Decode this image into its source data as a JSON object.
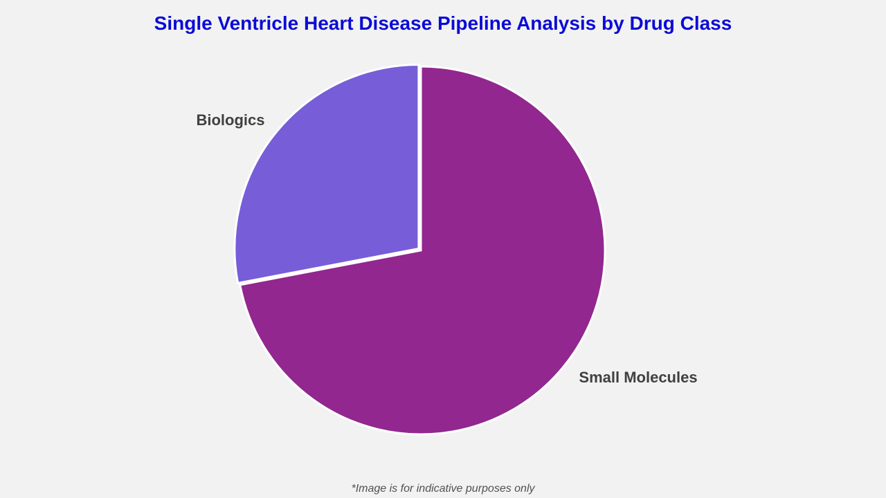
{
  "chart_data": {
    "type": "pie",
    "title": "Single Ventricle Heart Disease Pipeline Analysis by Drug Class",
    "slices": [
      {
        "label": "Small Molecules",
        "value": 72,
        "color": "#92278f"
      },
      {
        "label": "Biologics",
        "value": 28,
        "color": "#775dd8"
      }
    ],
    "start": "12 o'clock, clockwise",
    "legend": "none (direct labels)"
  },
  "footnote": "*Image is for indicative purposes only"
}
